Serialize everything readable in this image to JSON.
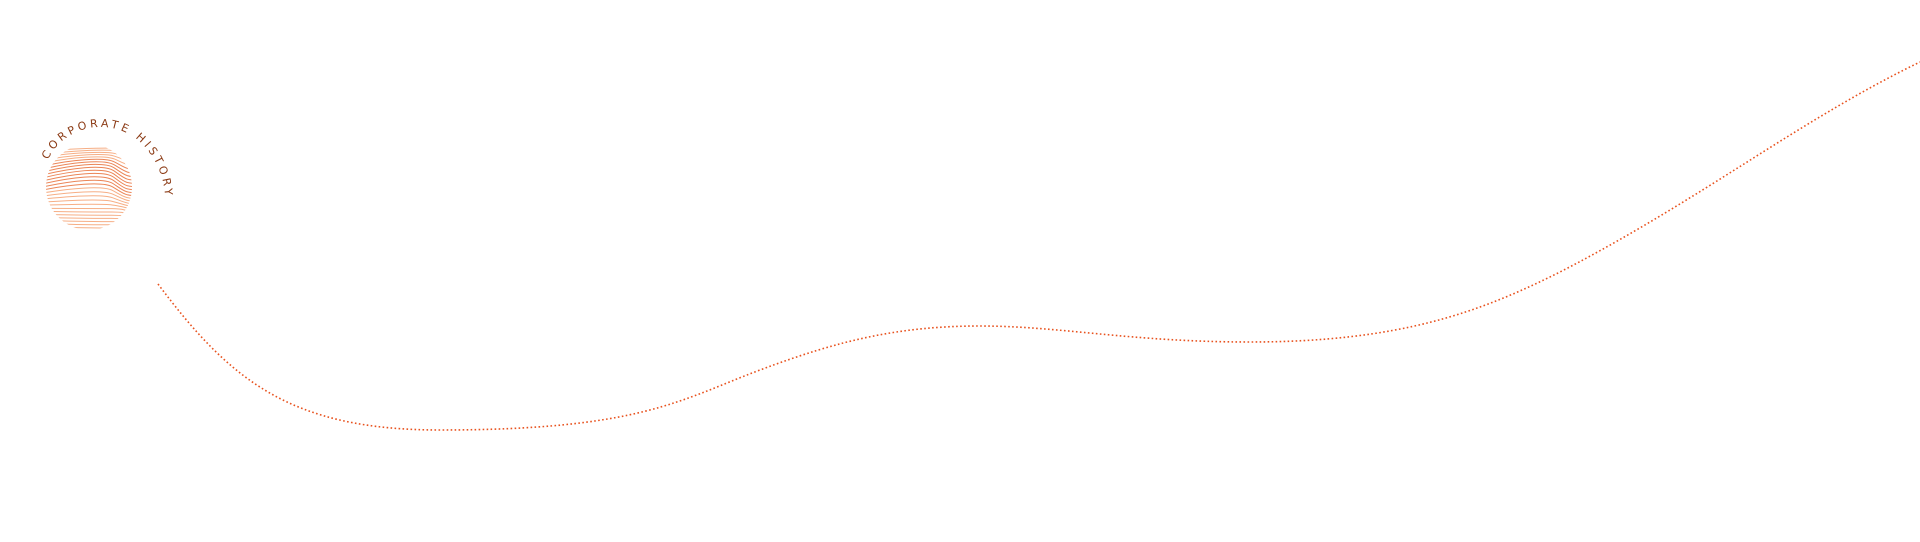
{
  "logo": {
    "text": "CORPORATE HISTORY",
    "text_color": "#8B3A14",
    "line_color": "#F4A070",
    "accent_line_color": "#E8703A"
  },
  "timeline": {
    "color": "#E8521E",
    "style": "dotted"
  }
}
